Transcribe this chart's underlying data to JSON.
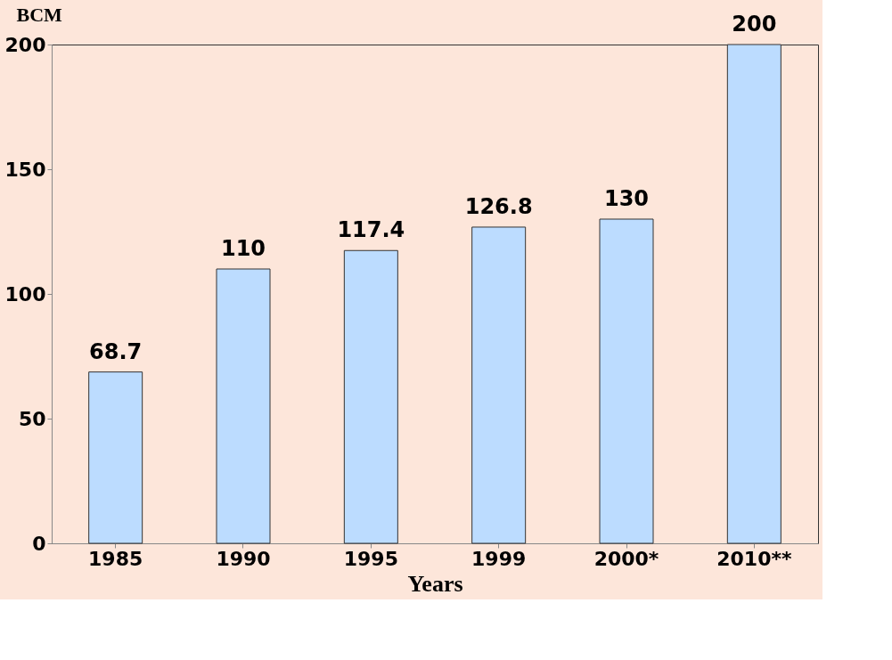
{
  "chart_data": {
    "type": "bar",
    "xlabel": "Years",
    "ylabel": "BCM",
    "categories": [
      "1985",
      "1990",
      "1995",
      "1999",
      "2000*",
      "2010**"
    ],
    "values": [
      68.7,
      110,
      117.4,
      126.8,
      130,
      200
    ],
    "color": "#bcdcff",
    "ylim": [
      0,
      200
    ],
    "yticks": [
      0,
      50,
      100,
      150,
      200
    ],
    "data_labels": true,
    "grid": false
  }
}
